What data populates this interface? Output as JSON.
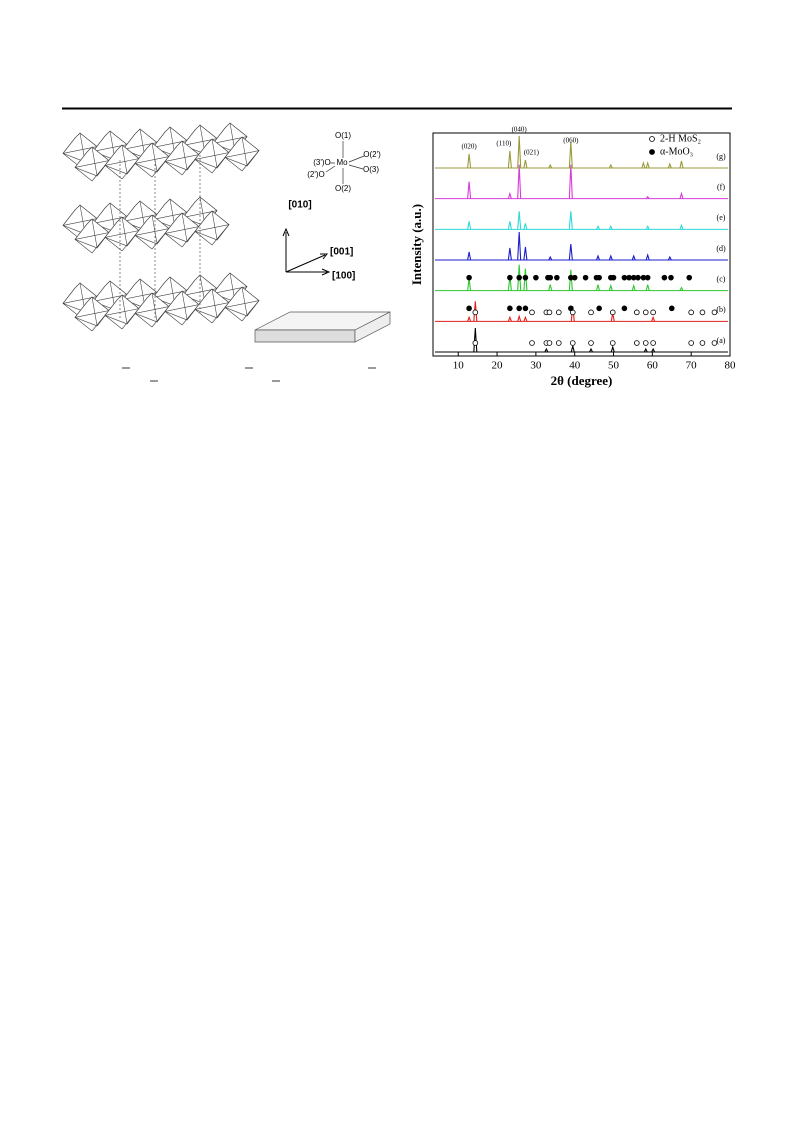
{
  "figure_left": {
    "labels": [
      "O(1)",
      "(3')O",
      "Mo",
      "O(2')",
      "(2')O",
      "O(3)",
      "O(2)"
    ],
    "axes": [
      "[010]",
      "[001]",
      "[100]"
    ]
  },
  "chart_data": {
    "type": "xrd",
    "xlabel": "2θ (degree)",
    "ylabel": "Intensity (a.u.)",
    "xlim": [
      3.5,
      80
    ],
    "xticks": [
      10,
      20,
      30,
      40,
      50,
      60,
      70,
      80
    ],
    "legend": [
      {
        "symbol": "open",
        "label": "2-H MoS₂"
      },
      {
        "symbol": "filled",
        "label": "α-MoO₃"
      }
    ],
    "annotations": [
      {
        "x": 12.8,
        "label": "(020)"
      },
      {
        "x": 23.3,
        "label": "(110)"
      },
      {
        "x": 25.7,
        "label": "(040)"
      },
      {
        "x": 27.3,
        "label": "(021)"
      },
      {
        "x": 39,
        "label": "(060)"
      }
    ],
    "series": [
      {
        "name": "(a)",
        "color": "#000000",
        "x": [
          14.4,
          32.7,
          39.5,
          44.2,
          49.8,
          58.3,
          60.2
        ],
        "values": [
          24,
          3,
          6,
          3,
          5,
          3,
          3
        ],
        "markers": {
          "open": [
            14.4,
            29.0,
            32.7,
            33.5,
            35.9,
            39.5,
            44.2,
            49.8,
            56.0,
            58.3,
            60.2,
            70.0,
            72.9,
            76.0
          ],
          "filled": []
        }
      },
      {
        "name": "(b)",
        "color": "#e0201c",
        "x": [
          12.8,
          14.4,
          23.3,
          25.7,
          27.3,
          39.5,
          49.8,
          60.2
        ],
        "values": [
          4,
          20,
          4,
          5,
          4,
          15,
          8,
          4
        ],
        "markers": {
          "open": [
            14.4,
            29.0,
            32.7,
            33.5,
            35.9,
            39.5,
            44.2,
            49.8,
            56.0,
            58.3,
            60.2,
            70.0,
            72.9,
            76.0
          ],
          "filled": [
            12.8,
            23.3,
            25.7,
            27.3,
            39.0,
            46.3,
            52.8,
            65.0
          ]
        }
      },
      {
        "name": "(c)",
        "color": "#2fc72f",
        "x": [
          12.8,
          23.3,
          25.7,
          27.3,
          33.7,
          39.0,
          46.0,
          49.3,
          55.2,
          58.8,
          67.5
        ],
        "values": [
          12,
          15,
          26,
          22,
          6,
          21,
          6,
          5,
          5,
          6,
          3
        ],
        "markers": {
          "open": [],
          "filled": [
            12.8,
            23.3,
            25.7,
            27.3,
            30.0,
            33.1,
            33.7,
            35.4,
            39.0,
            40.0,
            42.8,
            45.6,
            46.3,
            49.3,
            50.0,
            52.8,
            54.0,
            55.2,
            56.3,
            57.7,
            58.8,
            63.1,
            64.8,
            69.5
          ]
        }
      },
      {
        "name": "(d)",
        "color": "#1e1ec8",
        "x": [
          12.8,
          23.3,
          25.7,
          27.3,
          33.7,
          39.0,
          46.0,
          49.3,
          55.2,
          58.8,
          64.5
        ],
        "values": [
          8,
          12,
          28,
          13,
          3,
          16,
          4,
          4,
          4,
          5,
          3
        ],
        "markers": {
          "open": [],
          "filled": []
        }
      },
      {
        "name": "(e)",
        "color": "#2fd8d8",
        "x": [
          12.8,
          23.3,
          25.7,
          27.3,
          39.0,
          46.0,
          49.3,
          58.8,
          67.5
        ],
        "values": [
          8,
          8,
          18,
          6,
          18,
          3,
          3,
          3,
          4
        ],
        "markers": {
          "open": [],
          "filled": []
        }
      },
      {
        "name": "(f)",
        "color": "#d83cd8",
        "x": [
          12.8,
          23.3,
          25.7,
          39.0,
          58.8,
          67.5
        ],
        "values": [
          17,
          5,
          34,
          34,
          2,
          5
        ],
        "markers": {
          "open": [],
          "filled": []
        }
      },
      {
        "name": "(g)",
        "color": "#9a9a3a",
        "x": [
          12.8,
          23.3,
          25.7,
          27.3,
          33.7,
          39.0,
          49.3,
          57.7,
          58.8,
          64.5,
          67.5
        ],
        "values": [
          14,
          17,
          32,
          8,
          3,
          26,
          3,
          5,
          5,
          4,
          7
        ],
        "markers": {
          "open": [],
          "filled": []
        }
      }
    ]
  }
}
